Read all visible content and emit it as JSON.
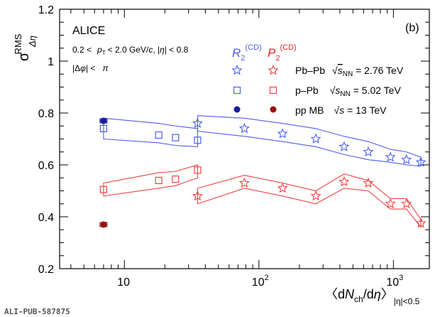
{
  "chart_data": {
    "type": "scatter",
    "panel_label": "(b)",
    "experiment": "ALICE",
    "cuts": {
      "line1_a": "0.2 <",
      "line1_b": "p",
      "line1_c": "T",
      "line1_d": "< 2.0 GeV/",
      "line1_e": "c",
      "line1_f": ", |",
      "line1_g": "η",
      "line1_h": "| < 0.8",
      "line2_a": "|Δ",
      "line2_b": "φ",
      "line2_c": "| <",
      "line2_d": "π"
    },
    "ylabel": {
      "main": "σ",
      "sup": "RMS",
      "sub": "Δη"
    },
    "xlabel": {
      "open": "〈d",
      "n": "N",
      "ch": "ch",
      "slash": "/d",
      "eta": "η",
      "close": "〉",
      "sub": "|η|<0.5"
    },
    "xscale": "log",
    "xlim": [
      3.3,
      1850
    ],
    "ylim": [
      0.2,
      1.2
    ],
    "yticks": [
      "0.2",
      "0.4",
      "0.6",
      "0.8",
      "1",
      "1.2"
    ],
    "xtick_labels": [
      {
        "x": 10,
        "base": "10",
        "exp": ""
      },
      {
        "x": 100,
        "base": "10",
        "exp": "2"
      },
      {
        "x": 1000,
        "base": "10",
        "exp": "3"
      }
    ],
    "legend": {
      "col_r2": {
        "sym": "R",
        "sub": "2",
        "sup": "(CD)"
      },
      "col_p2": {
        "sym": "P",
        "sub": "2",
        "sup": "(CD)"
      },
      "rows": [
        {
          "system": "Pb–Pb",
          "energy_a": "√",
          "energy_b": "s",
          "energy_c": "NN",
          "energy_d": " = 2.76 TeV"
        },
        {
          "system": "p–Pb",
          "energy_a": "√",
          "energy_b": "s",
          "energy_c": "NN",
          "energy_d": " = 5.02 TeV"
        },
        {
          "system": "pp MB",
          "energy_a": "√",
          "energy_b": "s",
          "energy_c": "",
          "energy_d": " = 13 TeV"
        }
      ]
    },
    "colors": {
      "r2": "#4d5ff0",
      "p2": "#ee4444",
      "pp_r2": "#1a1a9e",
      "pp_p2": "#991111"
    },
    "series": [
      {
        "name": "R2 Pb–Pb",
        "marker": "star",
        "color": "#4d5ff0",
        "x": [
          35,
          78,
          150,
          265,
          430,
          650,
          950,
          1250,
          1600
        ],
        "y": [
          0.76,
          0.74,
          0.72,
          0.7,
          0.67,
          0.65,
          0.63,
          0.62,
          0.61
        ],
        "band_upper": [
          0.79,
          0.78,
          0.76,
          0.74,
          0.71,
          0.69,
          0.66,
          0.65,
          0.63
        ],
        "band_lower": [
          0.73,
          0.71,
          0.69,
          0.67,
          0.64,
          0.62,
          0.61,
          0.6,
          0.595
        ]
      },
      {
        "name": "P2 Pb–Pb",
        "marker": "star",
        "color": "#ee4444",
        "x": [
          35,
          78,
          150,
          265,
          430,
          650,
          950,
          1250,
          1600
        ],
        "y": [
          0.48,
          0.53,
          0.51,
          0.48,
          0.535,
          0.53,
          0.45,
          0.45,
          0.375
        ],
        "band_upper": [
          0.51,
          0.56,
          0.53,
          0.5,
          0.565,
          0.54,
          0.47,
          0.47,
          0.39
        ],
        "band_lower": [
          0.45,
          0.51,
          0.48,
          0.45,
          0.51,
          0.5,
          0.43,
          0.43,
          0.36
        ]
      },
      {
        "name": "R2 p–Pb",
        "marker": "open-square",
        "color": "#4d5ff0",
        "x": [
          7,
          18,
          24,
          35
        ],
        "y": [
          0.74,
          0.715,
          0.705,
          0.695
        ],
        "band_upper": [
          0.78,
          0.76,
          0.75,
          0.74
        ],
        "band_lower": [
          0.7,
          0.685,
          0.675,
          0.67
        ]
      },
      {
        "name": "P2 p–Pb",
        "marker": "open-square",
        "color": "#ee4444",
        "x": [
          7,
          18,
          24,
          35
        ],
        "y": [
          0.505,
          0.54,
          0.545,
          0.58
        ],
        "band_upper": [
          0.53,
          0.57,
          0.575,
          0.6
        ],
        "band_lower": [
          0.48,
          0.51,
          0.52,
          0.55
        ]
      },
      {
        "name": "R2 pp MB",
        "marker": "filled-circle",
        "color": "#1a1a9e",
        "x": [
          7
        ],
        "y": [
          0.77
        ]
      },
      {
        "name": "P2 pp MB",
        "marker": "filled-circle",
        "color": "#991111",
        "x": [
          7
        ],
        "y": [
          0.37
        ]
      }
    ]
  },
  "footer": {
    "pub_id": "ALI-PUB-587875"
  }
}
